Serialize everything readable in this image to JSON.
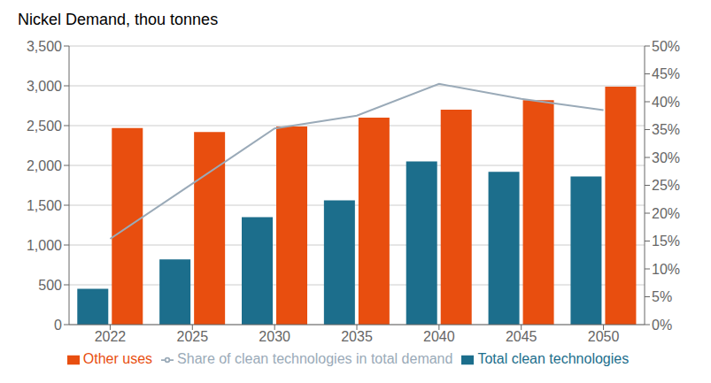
{
  "chart_data": {
    "type": "bar",
    "title": "Nickel Demand, thou tonnes",
    "categories": [
      "2022",
      "2025",
      "2030",
      "2035",
      "2040",
      "2045",
      "2050"
    ],
    "series": [
      {
        "name": "Total clean technologies",
        "color": "#1c6e8c",
        "values": [
          450,
          820,
          1350,
          1560,
          2050,
          1920,
          1860
        ]
      },
      {
        "name": "Other uses",
        "color": "#e84e0f",
        "values": [
          2470,
          2420,
          2490,
          2600,
          2700,
          2820,
          2990
        ]
      },
      {
        "name": "Share of clean technologies in total demand",
        "type": "line",
        "axis": "y2",
        "color": "#9aaab8",
        "values": [
          15.4,
          25.3,
          35.2,
          37.5,
          43.2,
          40.5,
          38.5
        ]
      }
    ],
    "ylim": [
      0,
      3500
    ],
    "yticks": [
      0,
      500,
      {
        "value": 1000,
        "label": "1,000"
      },
      {
        "value": 1500,
        "label": "1,500"
      },
      {
        "value": 2000,
        "label": "2,000"
      },
      {
        "value": 2500,
        "label": "2,500"
      },
      {
        "value": 3000,
        "label": "3,000"
      },
      {
        "value": 3500,
        "label": "3,500"
      }
    ],
    "y2lim": [
      0,
      50
    ],
    "y2ticks": [
      {
        "value": 0,
        "label": "0%"
      },
      {
        "value": 5,
        "label": "5%"
      },
      {
        "value": 10,
        "label": "10%"
      },
      {
        "value": 15,
        "label": "15%"
      },
      {
        "value": 20,
        "label": "20%"
      },
      {
        "value": 25,
        "label": "25%"
      },
      {
        "value": 30,
        "label": "30%"
      },
      {
        "value": 35,
        "label": "35%"
      },
      {
        "value": 40,
        "label": "40%"
      },
      {
        "value": 45,
        "label": "45%"
      },
      {
        "value": 50,
        "label": "50%"
      }
    ],
    "grid": true,
    "legend": "bottom"
  }
}
